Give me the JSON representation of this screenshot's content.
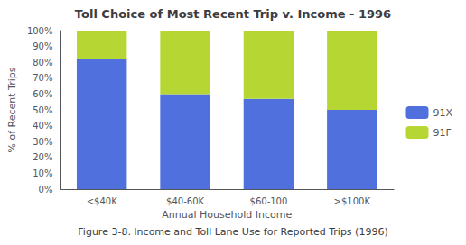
{
  "chart_data": {
    "type": "bar",
    "title": "Toll Choice of Most Recent Trip v. Income - 1996",
    "caption": "Figure 3-8. Income and Toll Lane Use for Reported Trips (1996)",
    "xlabel": "Annual Household Income",
    "ylabel": "% of Recent Trips",
    "categories": [
      "<$40K",
      "$40-60K",
      "$60-100",
      ">$100K"
    ],
    "series": [
      {
        "name": "91X",
        "values": [
          82,
          60,
          57,
          50
        ]
      },
      {
        "name": "91F",
        "values": [
          18,
          40,
          43,
          50
        ]
      }
    ],
    "stacked": true,
    "ylim": [
      0,
      100
    ],
    "yticks": [
      {
        "value": 0,
        "label": "0%"
      },
      {
        "value": 10,
        "label": "10%"
      },
      {
        "value": 20,
        "label": "20%"
      },
      {
        "value": 30,
        "label": "30%"
      },
      {
        "value": 40,
        "label": "40%"
      },
      {
        "value": 50,
        "label": "50%"
      },
      {
        "value": 60,
        "label": "60%"
      },
      {
        "value": 70,
        "label": "70%"
      },
      {
        "value": 80,
        "label": "80%"
      },
      {
        "value": 90,
        "label": "90%"
      },
      {
        "value": 100,
        "label": "100%"
      }
    ],
    "grid": false,
    "legend": "right"
  }
}
